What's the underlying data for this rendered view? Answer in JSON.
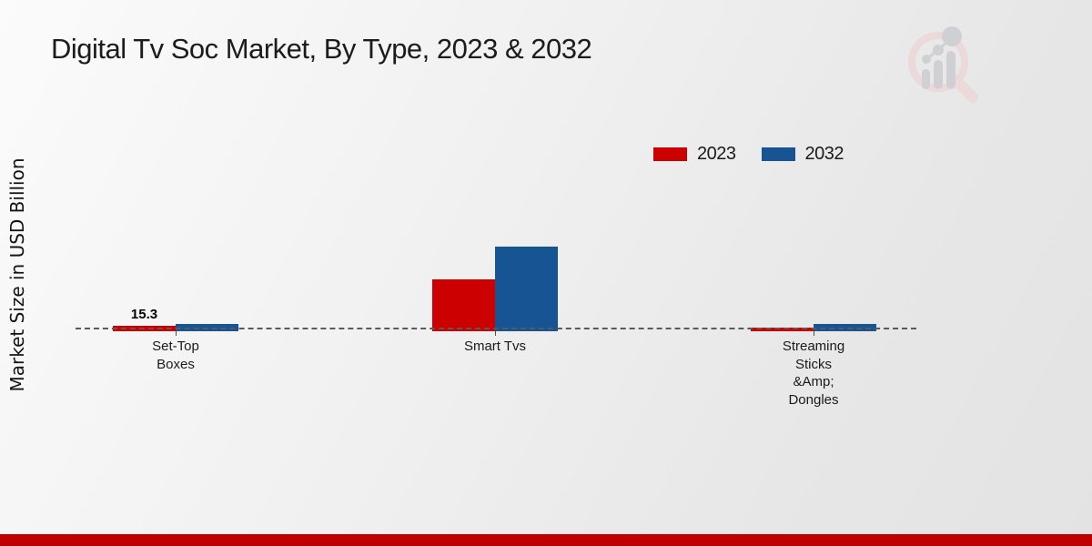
{
  "page": {
    "title": "Digital Tv Soc Market, By Type, 2023 & 2032",
    "y_axis_label": "Market Size in USD Billion"
  },
  "legend": {
    "items": [
      {
        "label": "2023",
        "color": "#cc0000"
      },
      {
        "label": "2032",
        "color": "#165494"
      }
    ]
  },
  "colors": {
    "series_2023": "#cc0000",
    "series_2032": "#165494",
    "footer_bar": "#c00000",
    "baseline_dash": "#5a5a5a"
  },
  "watermark": {
    "name": "market-research-future-logo",
    "ring_color": "#ecd9d9",
    "bars_color": "#d0d0d4"
  },
  "chart_data": {
    "type": "bar",
    "title": "Digital Tv Soc Market, By Type, 2023 & 2032",
    "xlabel": "",
    "ylabel": "Market Size in USD Billion",
    "categories": [
      "Set-Top Boxes",
      "Smart Tvs",
      "Streaming Sticks &Amp; Dongles"
    ],
    "category_label_lines": [
      [
        "Set-Top",
        "Boxes"
      ],
      [
        "Smart Tvs"
      ],
      [
        "Streaming",
        "Sticks",
        "&Amp;",
        "Dongles"
      ]
    ],
    "series": [
      {
        "name": "2023",
        "color": "#cc0000",
        "values": [
          15.3,
          153,
          11
        ]
      },
      {
        "name": "2032",
        "color": "#165494",
        "values": [
          21.5,
          250,
          21.5
        ]
      }
    ],
    "bar_labels": [
      {
        "series_index": 0,
        "category_index": 0,
        "text": "15.3"
      }
    ],
    "value_axis_ticks_visible": false,
    "baseline_value": 0,
    "grid": false,
    "legend_position": "top-right",
    "note_only_labeled_value": "15.3 is the only value printed on the chart; other series values are estimated from bar heights"
  }
}
